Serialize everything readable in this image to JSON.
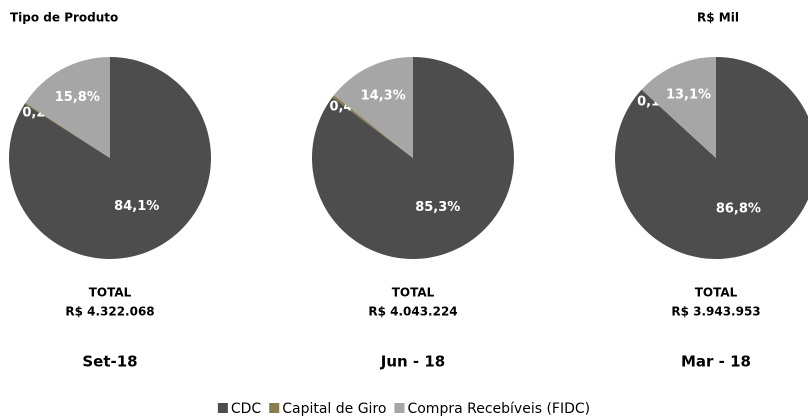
{
  "title": "Tipo de Produto",
  "unit": "R$ Mil",
  "chart_data": [
    {
      "type": "pie",
      "categories": [
        "CDC",
        "Capital de Giro",
        "Compra Recebíveis (FIDC)"
      ],
      "values": [
        84.1,
        0.2,
        15.8
      ],
      "value_labels": [
        "84,1%",
        "0,2%",
        "15,8%"
      ],
      "colors": [
        "#4d4d4d",
        "#8c7d4e",
        "#a6a6a6"
      ],
      "total_label": "TOTAL",
      "total": "R$ 4.322.068",
      "period": "Set-18"
    },
    {
      "type": "pie",
      "categories": [
        "CDC",
        "Capital de Giro",
        "Compra Recebíveis (FIDC)"
      ],
      "values": [
        85.3,
        0.4,
        14.3
      ],
      "value_labels": [
        "85,3%",
        "0,4%",
        "14,3%"
      ],
      "colors": [
        "#4d4d4d",
        "#8c7d4e",
        "#a6a6a6"
      ],
      "total_label": "TOTAL",
      "total": "R$ 4.043.224",
      "period": "Jun - 18"
    },
    {
      "type": "pie",
      "categories": [
        "CDC",
        "Capital de Giro",
        "Compra Recebíveis (FIDC)"
      ],
      "values": [
        86.8,
        0.1,
        13.1
      ],
      "value_labels": [
        "86,8%",
        "0,1%",
        "13,1%"
      ],
      "colors": [
        "#4d4d4d",
        "#8c7d4e",
        "#a6a6a6"
      ],
      "total_label": "TOTAL",
      "total": "R$ 3.943.953",
      "period": "Mar - 18"
    }
  ]
}
